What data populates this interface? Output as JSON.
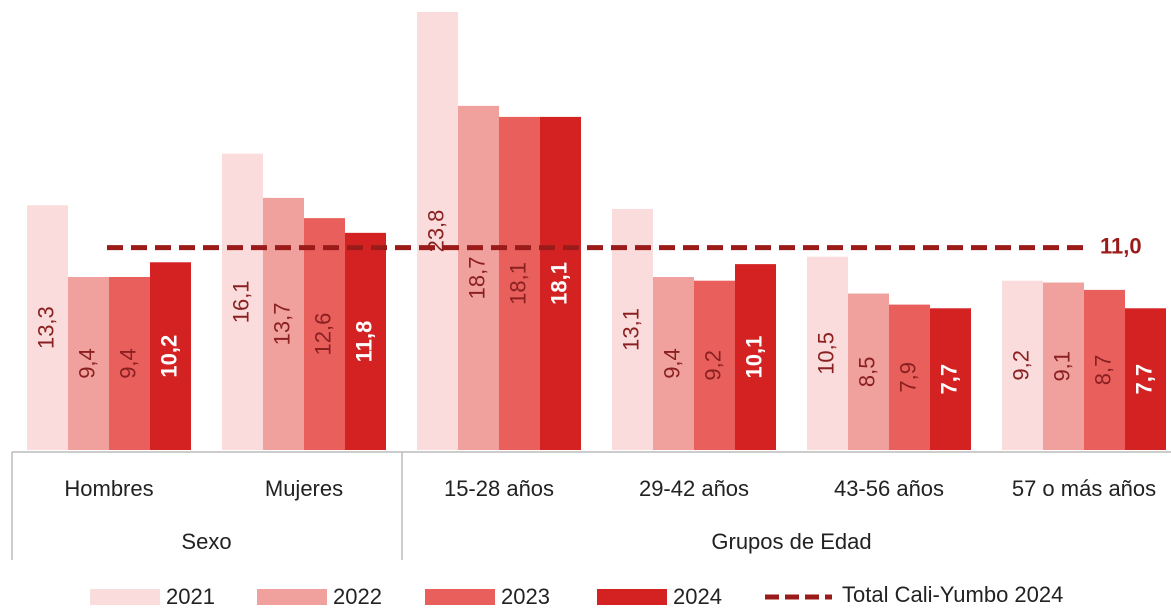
{
  "chart_data": {
    "type": "bar",
    "groups": [
      {
        "name": "Sexo",
        "categories": [
          "Hombres",
          "Mujeres"
        ]
      },
      {
        "name": "Grupos de Edad",
        "categories": [
          "15-28 años",
          "29-42 años",
          "43-56 años",
          "57 o más años"
        ]
      }
    ],
    "series": [
      {
        "name": "2021",
        "color": "#fadcdc",
        "values": [
          13.3,
          16.1,
          23.8,
          13.1,
          10.5,
          9.2
        ],
        "value_labels": [
          "13,3",
          "16,1",
          "23,8",
          "13,1",
          "10,5",
          "9,2"
        ]
      },
      {
        "name": "2022",
        "color": "#f0a19d",
        "values": [
          9.4,
          13.7,
          18.7,
          9.4,
          8.5,
          9.1
        ],
        "value_labels": [
          "9,4",
          "13,7",
          "18,7",
          "9,4",
          "8,5",
          "9,1"
        ]
      },
      {
        "name": "2023",
        "color": "#e85f5c",
        "values": [
          9.4,
          12.6,
          18.1,
          9.2,
          7.9,
          8.7
        ],
        "value_labels": [
          "9,4",
          "12,6",
          "18,1",
          "9,2",
          "7,9",
          "8,7"
        ]
      },
      {
        "name": "2024",
        "color": "#d42121",
        "values": [
          10.2,
          11.8,
          18.1,
          10.1,
          7.7,
          7.7
        ],
        "value_labels": [
          "10,2",
          "11,8",
          "18,1",
          "10,1",
          "7,7",
          "7,7"
        ]
      }
    ],
    "reference_lines": [
      {
        "name": "Total Cali-Yumbo 2024",
        "value": 11.0,
        "value_label": "11,0",
        "color": "#9b1b1b"
      }
    ]
  }
}
